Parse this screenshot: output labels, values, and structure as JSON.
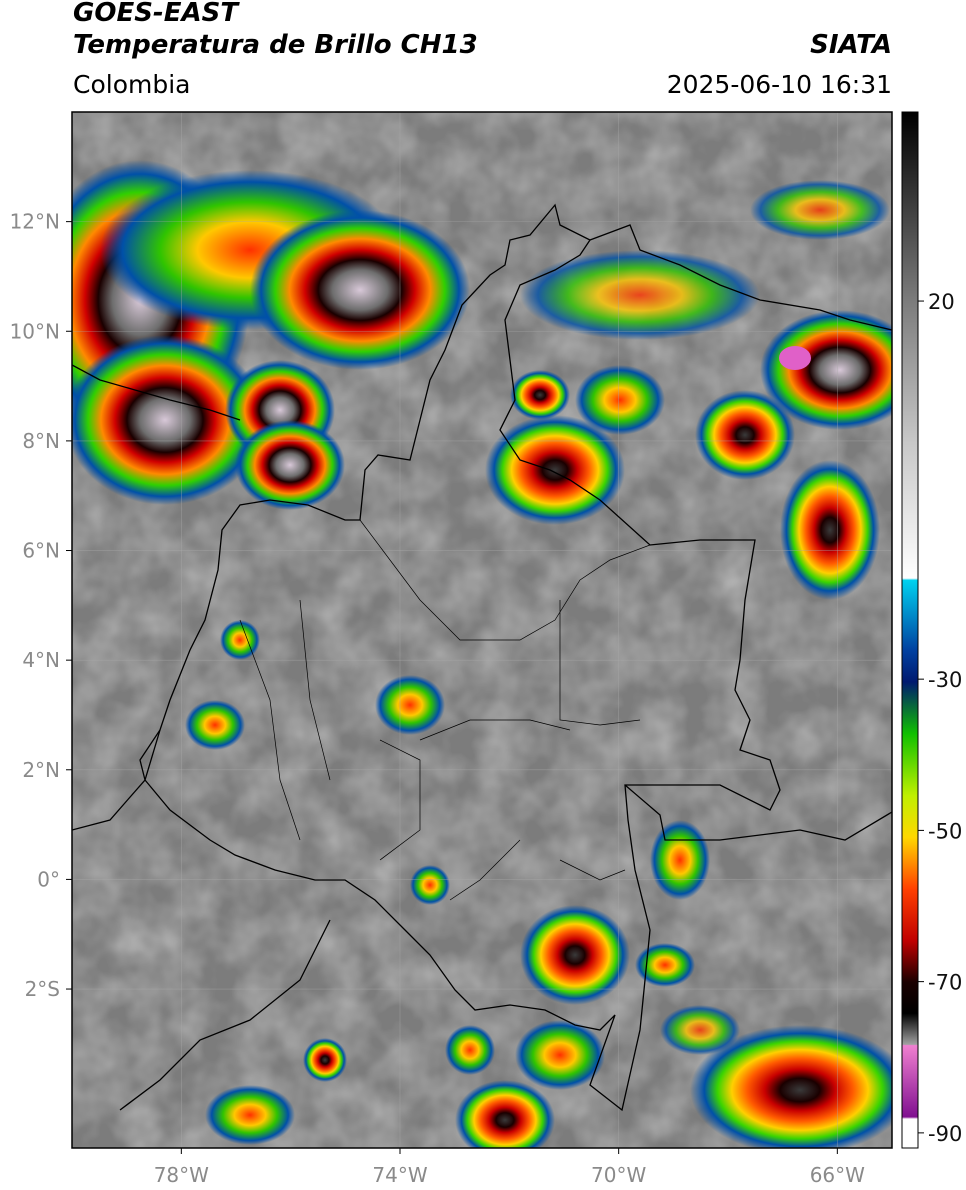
{
  "header": {
    "satellite": "GOES-EAST",
    "product": "Temperatura de Brillo CH13",
    "brand": "SIATA",
    "region": "Colombia",
    "datetime": "2025-06-10 16:31"
  },
  "map": {
    "lon_range": [
      -80,
      -65
    ],
    "lat_range": [
      -4.9,
      14
    ],
    "lon_ticks": [
      {
        "value": -78,
        "label": "78°W"
      },
      {
        "value": -74,
        "label": "74°W"
      },
      {
        "value": -70,
        "label": "70°W"
      },
      {
        "value": -66,
        "label": "66°W"
      }
    ],
    "lat_ticks": [
      {
        "value": 12,
        "label": "12°N"
      },
      {
        "value": 10,
        "label": "10°N"
      },
      {
        "value": 8,
        "label": "8°N"
      },
      {
        "value": 6,
        "label": "6°N"
      },
      {
        "value": 4,
        "label": "4°N"
      },
      {
        "value": 2,
        "label": "2°N"
      },
      {
        "value": 0,
        "label": "0°"
      },
      {
        "value": -2,
        "label": "2°S"
      }
    ],
    "grid": true
  },
  "colorbar": {
    "range": [
      -92,
      45
    ],
    "ticks": [
      {
        "value": 20,
        "label": "20"
      },
      {
        "value": -30,
        "label": "-30"
      },
      {
        "value": -50,
        "label": "-50"
      },
      {
        "value": -70,
        "label": "-70"
      },
      {
        "value": -90,
        "label": "-90"
      }
    ]
  }
}
